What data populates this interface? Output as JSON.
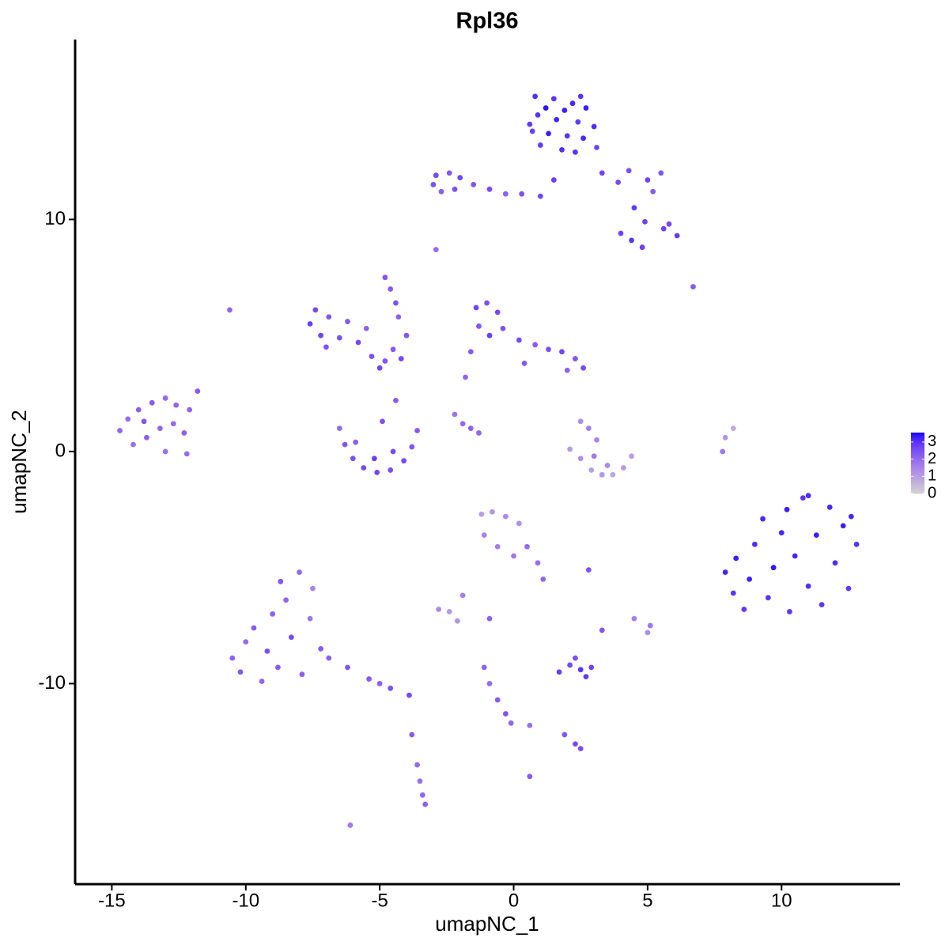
{
  "chart_data": {
    "type": "scatter",
    "title": "Rpl36",
    "xlabel": "umapNC_1",
    "ylabel": "umapNC_2",
    "xlim": [
      -16.37,
      14.42
    ],
    "ylim": [
      -18.64,
      17.75
    ],
    "xticks": [
      -15,
      -10,
      -5,
      0,
      5,
      10
    ],
    "yticks": [
      -10,
      0,
      10
    ],
    "colors": [
      "#d3d3d3",
      "#0000ff"
    ],
    "clim": [
      0,
      3.55
    ],
    "cticks": [
      0,
      1,
      2,
      3
    ],
    "x": [
      0.8,
      1.5,
      2.2,
      2.7,
      0.9,
      1.6,
      2.4,
      3.0,
      0.7,
      1.3,
      2.0,
      2.6,
      1.0,
      1.8,
      2.3,
      3.1,
      1.2,
      2.5,
      1.9,
      0.6,
      -2.9,
      -2.4,
      -2.0,
      -2.7,
      -3.0,
      -1.5,
      -0.9,
      -0.3,
      0.3,
      1.0,
      -2.2,
      1.5,
      3.3,
      3.9,
      4.3,
      5.0,
      5.5,
      5.2,
      4.5,
      4.9,
      5.6,
      6.1,
      5.8,
      4.4,
      4.8,
      4.0,
      -14.7,
      -14.4,
      -14.0,
      -13.5,
      -13.0,
      -12.6,
      -14.2,
      -13.7,
      -13.2,
      -12.7,
      -12.3,
      -13.0,
      -12.2,
      -11.8,
      -12.1,
      -13.8,
      -7.6,
      -7.4,
      -7.2,
      -6.9,
      -6.5,
      -6.2,
      -5.8,
      -5.5,
      -5.3,
      -5.0,
      -4.8,
      -4.5,
      -4.2,
      -7.0,
      -4.8,
      -4.6,
      -4.4,
      -4.3,
      -4.0,
      -6.5,
      -6.3,
      -6.0,
      -5.6,
      -5.1,
      -4.6,
      -4.1,
      -3.8,
      -3.6,
      -5.2,
      -4.5,
      -4.9,
      -4.4,
      -5.9,
      -1.4,
      -1.0,
      -0.6,
      -1.3,
      -0.9,
      -0.4,
      0.2,
      0.8,
      1.3,
      1.8,
      2.3,
      2.6,
      2.0,
      -1.6,
      -1.8,
      0.4,
      -2.2,
      -1.9,
      -1.6,
      -1.3,
      2.1,
      2.5,
      2.9,
      3.3,
      3.7,
      4.1,
      4.4,
      3.5,
      2.8,
      3.1,
      2.5,
      3.0,
      7.9,
      7.8,
      8.2,
      7.9,
      8.3,
      8.2,
      8.6,
      8.8,
      9.0,
      9.3,
      9.5,
      9.7,
      10.0,
      10.2,
      10.3,
      10.5,
      10.8,
      11.0,
      11.3,
      11.5,
      11.8,
      12.0,
      12.3,
      12.5,
      12.8,
      12.6,
      11.0,
      -10.5,
      -10.2,
      -10.0,
      -9.7,
      -9.4,
      -9.2,
      -9.0,
      -8.8,
      -8.7,
      -8.5,
      -8.3,
      -8.0,
      -7.9,
      -7.6,
      -7.5,
      -7.2,
      -6.9,
      -6.2,
      -5.4,
      -4.6,
      -3.9,
      -5.0,
      -1.2,
      -0.8,
      -0.3,
      0.2,
      -1.1,
      -0.6,
      0.0,
      0.5,
      0.9,
      1.1,
      -2.8,
      -2.4,
      -2.1,
      -1.9,
      -0.9,
      1.7,
      2.1,
      2.5,
      2.9,
      2.3,
      2.7,
      -1.1,
      -0.9,
      -0.6,
      -0.3,
      -0.1,
      0.6,
      1.9,
      2.3,
      2.5,
      -3.6,
      -3.5,
      -3.4,
      -3.3,
      -3.8,
      4.5,
      5.1,
      5.0,
      3.3,
      2.8,
      -10.6,
      -2.9,
      6.7,
      -6.1,
      0.6
    ],
    "y": [
      15.3,
      15.2,
      15.0,
      14.8,
      14.5,
      14.3,
      14.2,
      14.0,
      13.8,
      13.7,
      13.6,
      13.5,
      13.2,
      13.0,
      12.9,
      13.1,
      14.8,
      15.3,
      14.7,
      14.1,
      11.9,
      12.0,
      11.8,
      11.2,
      11.5,
      11.5,
      11.3,
      11.1,
      11.1,
      11.0,
      11.3,
      11.7,
      12.0,
      11.6,
      12.1,
      11.7,
      12.0,
      11.2,
      10.5,
      9.9,
      9.6,
      9.3,
      9.8,
      9.1,
      8.8,
      9.4,
      0.9,
      1.4,
      1.8,
      2.1,
      2.3,
      2.0,
      0.3,
      0.6,
      1.0,
      1.2,
      0.8,
      0.0,
      -0.1,
      2.6,
      1.8,
      1.3,
      5.5,
      6.1,
      5.0,
      5.8,
      4.9,
      5.6,
      4.7,
      5.3,
      4.1,
      3.6,
      3.9,
      4.4,
      4.0,
      4.5,
      7.5,
      7.0,
      6.4,
      5.8,
      5.0,
      1.0,
      0.3,
      -0.3,
      -0.7,
      -0.9,
      -0.8,
      -0.4,
      0.2,
      0.9,
      -0.3,
      0.0,
      1.3,
      2.2,
      0.4,
      6.2,
      6.4,
      6.0,
      5.4,
      5.0,
      5.3,
      4.8,
      4.6,
      4.4,
      4.3,
      4.0,
      3.6,
      3.5,
      4.3,
      3.2,
      3.8,
      1.6,
      1.2,
      1.0,
      0.8,
      0.1,
      -0.3,
      -0.8,
      -1.0,
      -1.0,
      -0.7,
      -0.2,
      -0.6,
      1.0,
      0.5,
      1.3,
      -0.2,
      0.6,
      0.0,
      1.0,
      -5.2,
      -4.6,
      -6.1,
      -6.8,
      -5.5,
      -4.0,
      -2.9,
      -6.3,
      -5.0,
      -3.5,
      -2.5,
      -6.9,
      -4.5,
      -2.0,
      -5.8,
      -3.6,
      -6.6,
      -2.4,
      -4.8,
      -3.2,
      -5.9,
      -4.0,
      -2.8,
      -1.9,
      -8.9,
      -9.5,
      -8.2,
      -7.6,
      -9.9,
      -8.6,
      -7.0,
      -9.3,
      -5.6,
      -6.4,
      -8.0,
      -5.2,
      -9.6,
      -7.2,
      -5.9,
      -8.5,
      -8.9,
      -9.3,
      -9.8,
      -10.2,
      -10.5,
      -10.0,
      -2.7,
      -2.6,
      -2.8,
      -3.1,
      -3.6,
      -4.1,
      -4.5,
      -4.1,
      -4.8,
      -5.5,
      -6.8,
      -6.9,
      -7.3,
      -6.2,
      -7.2,
      -9.5,
      -9.2,
      -9.4,
      -9.3,
      -8.9,
      -9.7,
      -9.3,
      -10.0,
      -10.7,
      -11.3,
      -11.7,
      -11.8,
      -12.2,
      -12.6,
      -12.8,
      -13.5,
      -14.2,
      -14.8,
      -15.2,
      -12.2,
      -7.2,
      -7.5,
      -7.8,
      -7.7,
      -5.1,
      6.1,
      8.7,
      7.1,
      -16.1,
      -14.0
    ],
    "values": [
      3.1,
      3.0,
      3.2,
      3.3,
      3.0,
      3.2,
      2.9,
      3.1,
      2.8,
      3.3,
      3.0,
      3.2,
      2.9,
      3.1,
      3.0,
      2.7,
      3.4,
      3.0,
      3.3,
      2.9,
      2.6,
      2.4,
      2.7,
      2.3,
      2.5,
      2.4,
      2.6,
      2.2,
      2.5,
      2.7,
      2.5,
      2.8,
      2.7,
      2.6,
      2.5,
      2.7,
      2.4,
      2.3,
      2.9,
      2.8,
      2.7,
      2.9,
      2.6,
      3.0,
      2.8,
      2.7,
      2.1,
      2.0,
      2.2,
      2.3,
      2.0,
      2.1,
      1.9,
      2.2,
      2.1,
      2.0,
      2.2,
      1.9,
      2.0,
      2.3,
      2.1,
      2.4,
      2.8,
      2.6,
      2.7,
      2.4,
      2.5,
      2.3,
      2.6,
      2.2,
      2.5,
      2.7,
      2.4,
      2.3,
      2.6,
      2.5,
      2.4,
      2.3,
      2.5,
      2.2,
      2.4,
      2.0,
      2.4,
      2.5,
      2.6,
      2.7,
      2.5,
      2.6,
      2.4,
      2.3,
      2.8,
      2.6,
      2.4,
      2.3,
      2.2,
      2.7,
      2.5,
      2.6,
      2.4,
      2.8,
      2.5,
      2.6,
      2.3,
      2.5,
      2.7,
      2.4,
      2.6,
      2.2,
      2.3,
      2.1,
      2.4,
      1.8,
      2.0,
      2.2,
      2.1,
      1.1,
      1.3,
      1.0,
      1.2,
      0.9,
      1.1,
      1.0,
      1.4,
      1.6,
      1.5,
      1.3,
      1.7,
      1.2,
      1.8,
      0.8,
      3.2,
      3.3,
      3.0,
      2.9,
      3.3,
      3.1,
      3.2,
      3.0,
      3.4,
      3.2,
      3.3,
      2.9,
      3.2,
      3.0,
      3.1,
      3.3,
      3.0,
      3.2,
      3.1,
      3.3,
      2.9,
      3.0,
      3.2,
      3.1,
      2.2,
      2.4,
      2.0,
      2.3,
      2.1,
      2.5,
      2.2,
      2.3,
      2.4,
      2.1,
      2.6,
      2.0,
      2.2,
      1.8,
      1.5,
      2.3,
      2.2,
      2.4,
      2.3,
      2.5,
      2.6,
      2.2,
      1.0,
      1.2,
      1.4,
      1.3,
      1.5,
      1.6,
      1.8,
      2.0,
      1.9,
      2.1,
      1.4,
      1.1,
      1.2,
      1.6,
      2.2,
      2.8,
      2.6,
      3.0,
      2.7,
      2.5,
      2.9,
      2.2,
      2.0,
      2.3,
      2.4,
      2.1,
      1.9,
      2.4,
      2.6,
      2.5,
      2.0,
      1.9,
      2.1,
      2.2,
      2.3,
      1.6,
      1.8,
      1.3,
      2.4,
      2.5,
      2.1,
      2.0,
      2.3,
      1.7,
      2.3
    ]
  }
}
